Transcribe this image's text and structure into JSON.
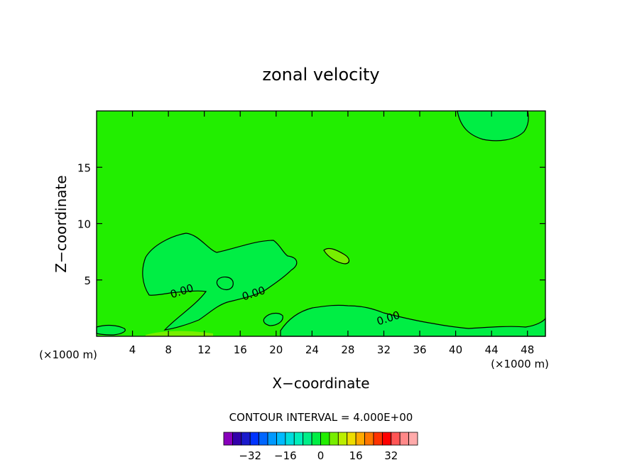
{
  "chart_data": {
    "type": "heatmap",
    "title": "zonal velocity",
    "xlabel": "X−coordinate",
    "ylabel": "Z−coordinate",
    "x_unit": "(×1000 m)",
    "xlim": [
      0,
      50
    ],
    "ylim": [
      0,
      20
    ],
    "x_ticks": [
      4,
      8,
      12,
      16,
      20,
      24,
      28,
      32,
      36,
      40,
      44,
      48
    ],
    "y_ticks": [
      5,
      10,
      15
    ],
    "contour_interval_label": "CONTOUR INTERVAL = 4.000E+00",
    "contour_labels": [
      {
        "text": "0.00",
        "x": 9.5,
        "z": 4.0
      },
      {
        "text": "0.00",
        "x": 17.5,
        "z": 3.8
      },
      {
        "text": "0.00",
        "x": 32.5,
        "z": 1.6
      }
    ],
    "colorbar": {
      "values": [
        -36,
        -32,
        -28,
        -24,
        -20,
        -16,
        -12,
        -8,
        -4,
        0,
        4,
        8,
        12,
        16,
        20,
        24,
        28,
        32,
        36
      ],
      "tick_labels": [
        {
          "text": "−32",
          "value": -32
        },
        {
          "text": "−16",
          "value": -16
        },
        {
          "text": "0",
          "value": 0
        },
        {
          "text": "16",
          "value": 16
        },
        {
          "text": "32",
          "value": 32
        }
      ],
      "colors": [
        "#8800bb",
        "#3300aa",
        "#1a1acc",
        "#0033ff",
        "#0066ff",
        "#0099ff",
        "#00bbff",
        "#00dddd",
        "#00eebb",
        "#00ee88",
        "#00ee44",
        "#22ee00",
        "#77ee00",
        "#bbee00",
        "#eedd00",
        "#ffaa00",
        "#ff7700",
        "#ff3300",
        "#ff0000",
        "#ff5555",
        "#ff8888",
        "#ffaaaa"
      ]
    },
    "colors": {
      "background_field": "#22ee00",
      "negative_region": "#00ee44",
      "positive_region": "#77ee00"
    }
  }
}
